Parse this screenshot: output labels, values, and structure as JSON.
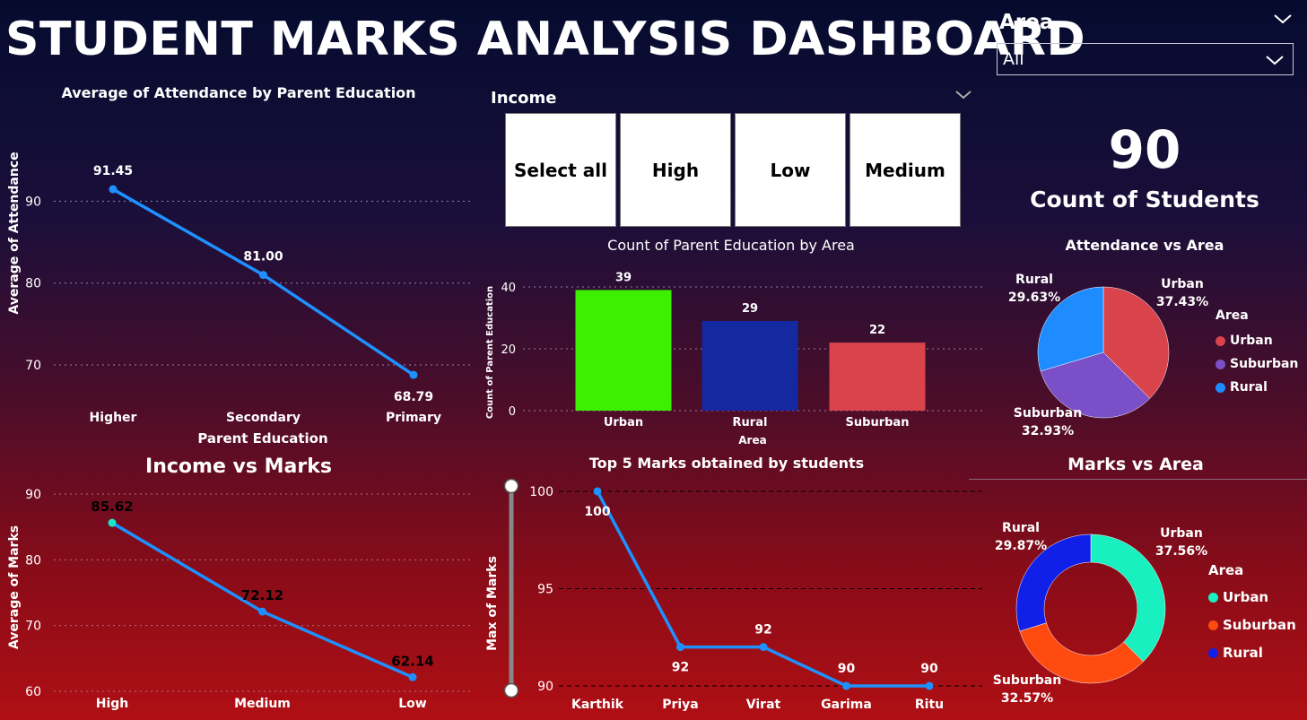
{
  "title": "STUDENT MARKS ANALYSIS DASHBOARD",
  "area_filter": {
    "label": "Area",
    "selected": "All"
  },
  "income_filter": {
    "label": "Income",
    "options": [
      "Select all",
      "High",
      "Low",
      "Medium"
    ]
  },
  "kpi": {
    "value": "90",
    "label": "Count of Students"
  },
  "chart_data": [
    {
      "id": "attendance_by_parent_education",
      "type": "line",
      "title": "Average of Attendance by Parent Education",
      "xlabel": "Parent Education",
      "ylabel": "Average of Attendance",
      "categories": [
        "Higher",
        "Secondary",
        "Primary"
      ],
      "values": [
        91.45,
        81.0,
        68.79
      ],
      "data_labels": [
        "91.45",
        "81.00",
        "68.79"
      ],
      "yticks": [
        70,
        80,
        90
      ],
      "ylim": [
        63,
        100
      ],
      "color": "#1e90ff"
    },
    {
      "id": "income_vs_marks",
      "type": "line",
      "title": "Income vs Marks",
      "xlabel": "",
      "ylabel": "Average of Marks",
      "categories": [
        "High",
        "Medium",
        "Low"
      ],
      "values": [
        85.62,
        72.12,
        62.14
      ],
      "data_labels": [
        "85.62",
        "72.12",
        "62.14"
      ],
      "yticks": [
        60,
        70,
        80,
        90
      ],
      "ylim": [
        60,
        90
      ],
      "color": "#1e90ff"
    },
    {
      "id": "parent_education_by_area",
      "type": "bar",
      "title": "Count of Parent Education by Area",
      "xlabel": "Area",
      "ylabel": "Count of Parent Education",
      "categories": [
        "Urban",
        "Rural",
        "Suburban"
      ],
      "values": [
        39,
        29,
        22
      ],
      "colors": [
        "#3cf000",
        "#1428a0",
        "#d9434c"
      ],
      "yticks": [
        0,
        20,
        40
      ],
      "ylim": [
        0,
        40
      ]
    },
    {
      "id": "top5_marks",
      "type": "line",
      "title": "Top 5 Marks obtained by students",
      "xlabel": "",
      "ylabel": "Max of Marks",
      "categories": [
        "Karthik",
        "Priya",
        "Virat",
        "Garima",
        "Ritu"
      ],
      "values": [
        100,
        92,
        92,
        90,
        90
      ],
      "data_labels": [
        "100",
        "92",
        "92",
        "90",
        "90"
      ],
      "yticks": [
        90,
        95,
        100
      ],
      "ylim": [
        90,
        100
      ],
      "color": "#1e90ff"
    },
    {
      "id": "attendance_vs_area",
      "type": "pie",
      "title": "Attendance vs Area",
      "legend_title": "Area",
      "slices": [
        {
          "label": "Urban",
          "value": 37.43,
          "text": "37.43%",
          "color": "#d9434c"
        },
        {
          "label": "Suburban",
          "value": 32.93,
          "text": "32.93%",
          "color": "#7a4fc8"
        },
        {
          "label": "Rural",
          "value": 29.63,
          "text": "29.63%",
          "color": "#1e8cff"
        }
      ]
    },
    {
      "id": "marks_vs_area",
      "type": "pie",
      "title": "Marks vs Area",
      "legend_title": "Area",
      "slices": [
        {
          "label": "Urban",
          "value": 37.56,
          "text": "37.56%",
          "color": "#19f0c0"
        },
        {
          "label": "Suburban",
          "value": 32.57,
          "text": "32.57%",
          "color": "#ff4a10"
        },
        {
          "label": "Rural",
          "value": 29.87,
          "text": "29.87%",
          "color": "#1020e8"
        }
      ]
    }
  ]
}
